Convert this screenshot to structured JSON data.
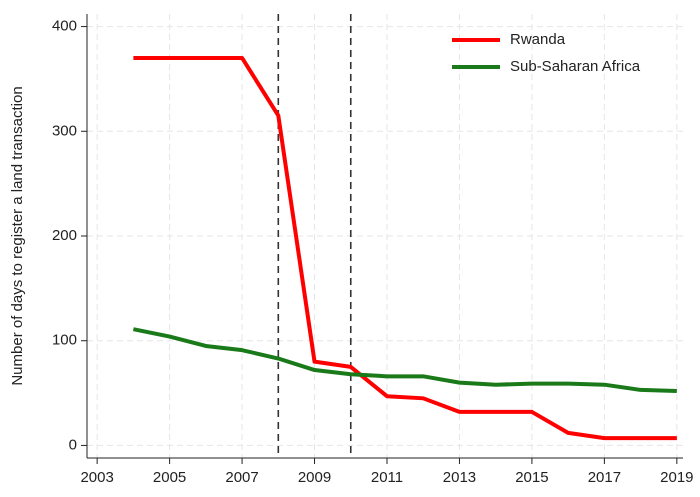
{
  "chart_data": {
    "type": "line",
    "y_label": "Number of days to register a land transaction",
    "x": [
      2004,
      2005,
      2006,
      2007,
      2008,
      2009,
      2010,
      2011,
      2012,
      2013,
      2014,
      2015,
      2016,
      2017,
      2018,
      2019
    ],
    "series": [
      {
        "name": "Rwanda",
        "color": "#ff0000",
        "values": [
          370,
          370,
          370,
          370,
          315,
          80,
          75,
          47,
          45,
          32,
          32,
          32,
          12,
          7,
          7,
          7
        ]
      },
      {
        "name": "Sub-Saharan Africa",
        "color": "#1a7a1a",
        "values": [
          111,
          104,
          95,
          91,
          83,
          72,
          68,
          66,
          66,
          60,
          58,
          59,
          59,
          58,
          53,
          52
        ]
      }
    ],
    "xlim": [
      2002.72,
      2019.17
    ],
    "ylim": [
      -12,
      412
    ],
    "xticks": [
      2003,
      2005,
      2007,
      2009,
      2011,
      2013,
      2015,
      2017,
      2019
    ],
    "yticks": [
      0,
      100,
      200,
      300,
      400
    ],
    "vlines": [
      2008,
      2010
    ],
    "grid": true,
    "legend": "top-right"
  }
}
